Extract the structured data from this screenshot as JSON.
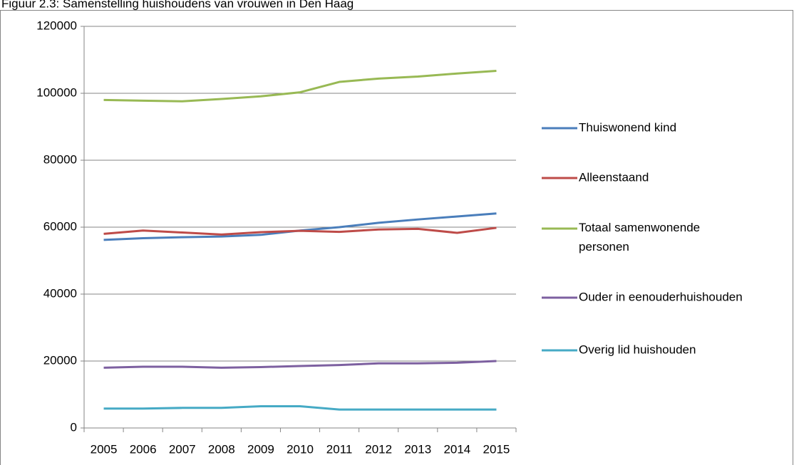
{
  "chart_data": {
    "type": "line",
    "title": "Figuur 2.3: Samenstelling huishoudens van vrouwen in Den Haag",
    "categories": [
      "2005",
      "2006",
      "2007",
      "2008",
      "2009",
      "2010",
      "2011",
      "2012",
      "2013",
      "2014",
      "2015"
    ],
    "series": [
      {
        "name": "Thuiswonend kind",
        "color": "#4a7ebb",
        "values": [
          56200,
          56700,
          57000,
          57200,
          57700,
          59000,
          60000,
          61300,
          62300,
          63200,
          64100
        ]
      },
      {
        "name": "Alleenstaand",
        "color": "#be4b48",
        "values": [
          58000,
          59000,
          58400,
          57800,
          58500,
          58900,
          58600,
          59300,
          59500,
          58300,
          59800
        ]
      },
      {
        "name": "Totaal samenwonende personen",
        "color": "#98b954",
        "values": [
          98000,
          97800,
          97600,
          98300,
          99100,
          100300,
          103400,
          104400,
          105000,
          105900,
          106700
        ]
      },
      {
        "name": "Ouder in eenouderhuishouden",
        "color": "#7d60a0",
        "values": [
          18000,
          18300,
          18300,
          18000,
          18200,
          18500,
          18800,
          19300,
          19300,
          19500,
          20000
        ]
      },
      {
        "name": "Overig lid huishouden",
        "color": "#46aac5",
        "values": [
          5800,
          5800,
          6000,
          6000,
          6500,
          6500,
          5500,
          5500,
          5500,
          5500,
          5500
        ]
      }
    ],
    "ylim": [
      0,
      120000
    ],
    "yticks": [
      0,
      20000,
      40000,
      60000,
      80000,
      100000,
      120000
    ],
    "grid": true,
    "legend": "right"
  }
}
